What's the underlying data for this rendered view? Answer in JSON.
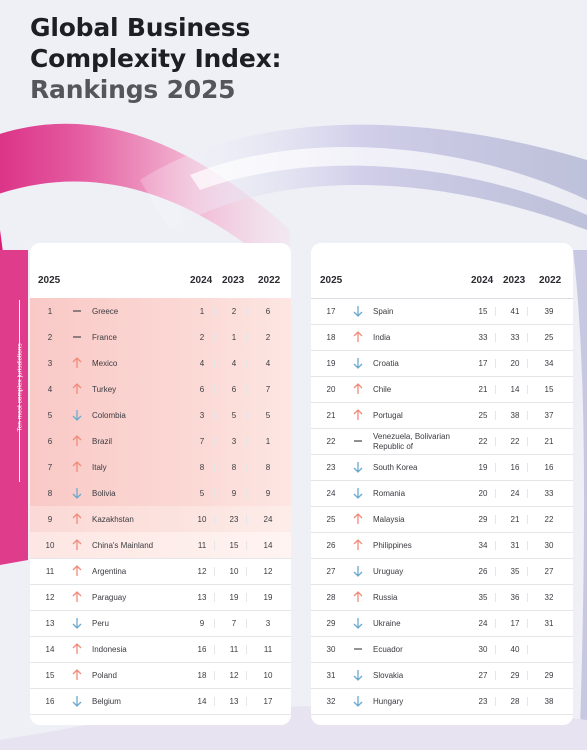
{
  "title": {
    "line1": "Global Business",
    "line2": "Complexity Index:",
    "line3": "Rankings 2025"
  },
  "side_label": "Ten most complex jurisdictions",
  "colors": {
    "up": "#f08a7a",
    "down": "#6aa9cf",
    "same": "#555555",
    "highlight": "#f9c9c6"
  },
  "columns": {
    "rank": "2025",
    "y2024": "2024",
    "y2023": "2023",
    "y2022": "2022"
  },
  "left_table": [
    {
      "rank": "1",
      "trend": "same",
      "name": "Greece",
      "y2024": "1",
      "y2023": "2",
      "y2022": "6"
    },
    {
      "rank": "2",
      "trend": "same",
      "name": "France",
      "y2024": "2",
      "y2023": "1",
      "y2022": "2"
    },
    {
      "rank": "3",
      "trend": "up",
      "name": "Mexico",
      "y2024": "4",
      "y2023": "4",
      "y2022": "4"
    },
    {
      "rank": "4",
      "trend": "up",
      "name": "Turkey",
      "y2024": "6",
      "y2023": "6",
      "y2022": "7"
    },
    {
      "rank": "5",
      "trend": "down",
      "name": "Colombia",
      "y2024": "3",
      "y2023": "5",
      "y2022": "5"
    },
    {
      "rank": "6",
      "trend": "up",
      "name": "Brazil",
      "y2024": "7",
      "y2023": "3",
      "y2022": "1"
    },
    {
      "rank": "7",
      "trend": "up",
      "name": "Italy",
      "y2024": "8",
      "y2023": "8",
      "y2022": "8"
    },
    {
      "rank": "8",
      "trend": "down",
      "name": "Bolivia",
      "y2024": "5",
      "y2023": "9",
      "y2022": "9"
    },
    {
      "rank": "9",
      "trend": "up",
      "name": "Kazakhstan",
      "y2024": "10",
      "y2023": "23",
      "y2022": "24"
    },
    {
      "rank": "10",
      "trend": "up",
      "name": "China's Mainland",
      "y2024": "11",
      "y2023": "15",
      "y2022": "14"
    },
    {
      "rank": "11",
      "trend": "up",
      "name": "Argentina",
      "y2024": "12",
      "y2023": "10",
      "y2022": "12"
    },
    {
      "rank": "12",
      "trend": "up",
      "name": "Paraguay",
      "y2024": "13",
      "y2023": "19",
      "y2022": "19"
    },
    {
      "rank": "13",
      "trend": "down",
      "name": "Peru",
      "y2024": "9",
      "y2023": "7",
      "y2022": "3"
    },
    {
      "rank": "14",
      "trend": "up",
      "name": "Indonesia",
      "y2024": "16",
      "y2023": "11",
      "y2022": "11"
    },
    {
      "rank": "15",
      "trend": "up",
      "name": "Poland",
      "y2024": "18",
      "y2023": "12",
      "y2022": "10"
    },
    {
      "rank": "16",
      "trend": "down",
      "name": "Belgium",
      "y2024": "14",
      "y2023": "13",
      "y2022": "17"
    }
  ],
  "right_table": [
    {
      "rank": "17",
      "trend": "down",
      "name": "Spain",
      "y2024": "15",
      "y2023": "41",
      "y2022": "39"
    },
    {
      "rank": "18",
      "trend": "up",
      "name": "India",
      "y2024": "33",
      "y2023": "33",
      "y2022": "25"
    },
    {
      "rank": "19",
      "trend": "down",
      "name": "Croatia",
      "y2024": "17",
      "y2023": "20",
      "y2022": "34"
    },
    {
      "rank": "20",
      "trend": "up",
      "name": "Chile",
      "y2024": "21",
      "y2023": "14",
      "y2022": "15"
    },
    {
      "rank": "21",
      "trend": "up",
      "name": "Portugal",
      "y2024": "25",
      "y2023": "38",
      "y2022": "37"
    },
    {
      "rank": "22",
      "trend": "same",
      "name": "Venezuela, Bolivarian Republic of",
      "y2024": "22",
      "y2023": "22",
      "y2022": "21"
    },
    {
      "rank": "23",
      "trend": "down",
      "name": "South Korea",
      "y2024": "19",
      "y2023": "16",
      "y2022": "16"
    },
    {
      "rank": "24",
      "trend": "down",
      "name": "Romania",
      "y2024": "20",
      "y2023": "24",
      "y2022": "33"
    },
    {
      "rank": "25",
      "trend": "up",
      "name": "Malaysia",
      "y2024": "29",
      "y2023": "21",
      "y2022": "22"
    },
    {
      "rank": "26",
      "trend": "up",
      "name": "Philippines",
      "y2024": "34",
      "y2023": "31",
      "y2022": "30"
    },
    {
      "rank": "27",
      "trend": "down",
      "name": "Uruguay",
      "y2024": "26",
      "y2023": "35",
      "y2022": "27"
    },
    {
      "rank": "28",
      "trend": "up",
      "name": "Russia",
      "y2024": "35",
      "y2023": "36",
      "y2022": "32"
    },
    {
      "rank": "29",
      "trend": "down",
      "name": "Ukraine",
      "y2024": "24",
      "y2023": "17",
      "y2022": "31"
    },
    {
      "rank": "30",
      "trend": "same",
      "name": "Ecuador",
      "y2024": "30",
      "y2023": "40",
      "y2022": ""
    },
    {
      "rank": "31",
      "trend": "down",
      "name": "Slovakia",
      "y2024": "27",
      "y2023": "29",
      "y2022": "29"
    },
    {
      "rank": "32",
      "trend": "down",
      "name": "Hungary",
      "y2024": "23",
      "y2023": "28",
      "y2022": "38"
    }
  ]
}
